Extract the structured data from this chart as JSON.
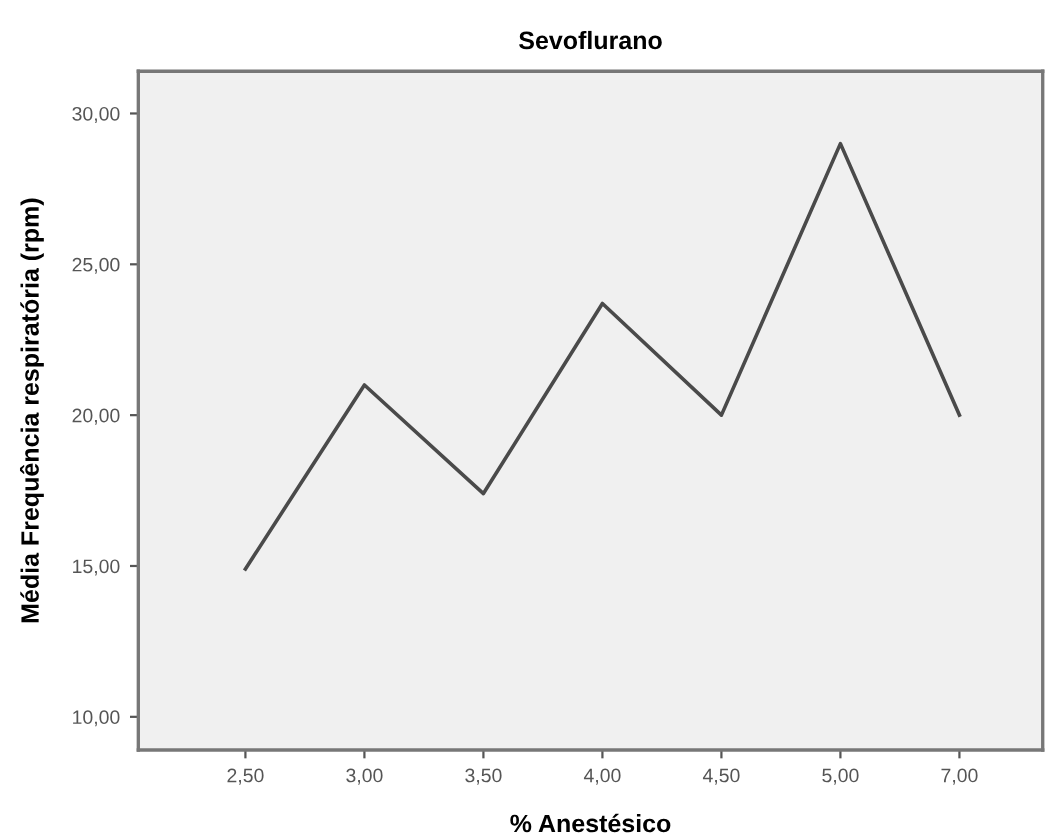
{
  "chart_data": {
    "type": "line",
    "title": "Sevoflurano",
    "xlabel": "% Anestésico",
    "ylabel": "Média Frequência respiratória (rpm)",
    "categories": [
      "2,50",
      "3,00",
      "3,50",
      "4,00",
      "4,50",
      "5,00",
      "7,00"
    ],
    "series": [
      {
        "color": "#4a4a4a",
        "values": [
          14.9,
          21.0,
          17.4,
          23.7,
          20.0,
          29.0,
          20.0
        ]
      }
    ],
    "ylim": [
      8.9,
      31.4
    ],
    "yticks": [
      {
        "value": 10,
        "label": "10,00"
      },
      {
        "value": 15,
        "label": "15,00"
      },
      {
        "value": 20,
        "label": "20,00"
      },
      {
        "value": 25,
        "label": "25,00"
      },
      {
        "value": 30,
        "label": "30,00"
      }
    ],
    "grid": false,
    "legend": false,
    "marker": "none",
    "line_style": "solid"
  }
}
